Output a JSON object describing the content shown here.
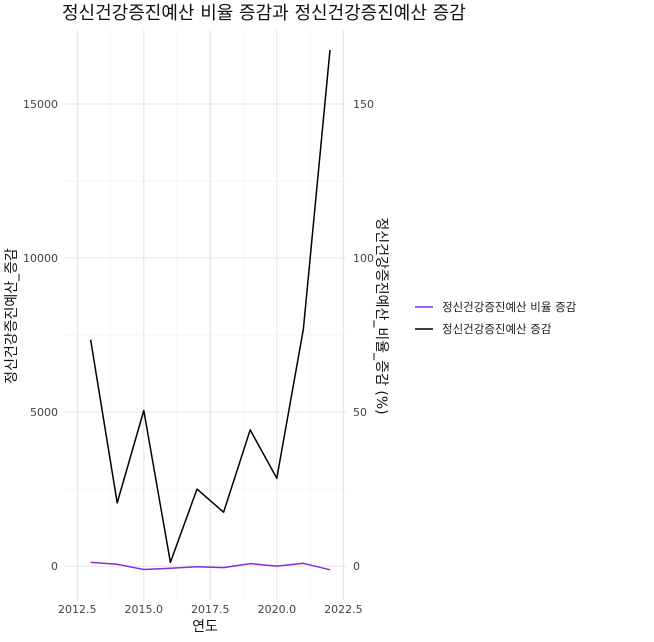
{
  "chart_data": {
    "type": "line",
    "title": "정신건강증진예산 비율 증감과 정신건강증진예산 증감",
    "xlabel": "연도",
    "ylabel": "정신건강증진예산_증감",
    "ylabel_right": "정신건강증진예산_비율_증감 (%)",
    "x": [
      2013,
      2014,
      2015,
      2016,
      2017,
      2018,
      2019,
      2020,
      2021,
      2022
    ],
    "xlim": [
      2012.0,
      2022.6
    ],
    "ylim": [
      -1100,
      17400
    ],
    "x_ticks": [
      "2012.5",
      "2015.0",
      "2017.5",
      "2020.0",
      "2022.5"
    ],
    "x_tick_values": [
      2012.5,
      2015.0,
      2017.5,
      2020.0,
      2022.5
    ],
    "y_ticks": [
      "0",
      "5000",
      "10000",
      "15000"
    ],
    "y_tick_values": [
      0,
      5000,
      10000,
      15000
    ],
    "y2_ticks": [
      "0",
      "50",
      "100",
      "150"
    ],
    "y2_tick_values": [
      0,
      50,
      100,
      150
    ],
    "y2_scale": 100,
    "grid": true,
    "legend_position": "right",
    "series": [
      {
        "name": "정신건강증진예산 비율 증감",
        "axis": "right",
        "color": "#8a2be2",
        "values": [
          1.2,
          0.6,
          -1.1,
          -0.7,
          -0.2,
          -0.5,
          0.8,
          0.0,
          0.9,
          -1.2
        ]
      },
      {
        "name": "정신건강증진예산 증감",
        "axis": "left",
        "color": "#000000",
        "values": [
          7350,
          2050,
          5050,
          120,
          2500,
          1750,
          4420,
          2850,
          7700,
          16750
        ]
      }
    ]
  }
}
